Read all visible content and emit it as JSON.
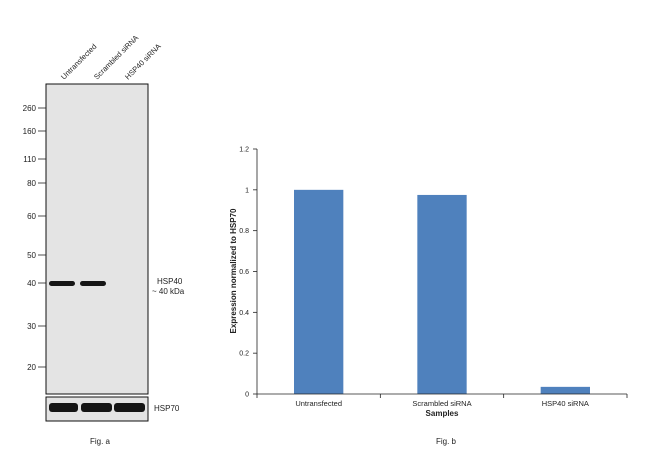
{
  "figure_a": {
    "lanes": [
      "Untransfected",
      "Scrambled siRNA",
      "HSP40 siRNA"
    ],
    "mw_markers": [
      "260",
      "160",
      "110",
      "80",
      "60",
      "50",
      "40",
      "30",
      "20"
    ],
    "band_label_line1": "HSP40",
    "band_label_line2": "~ 40 kDa",
    "loading_control_label": "HSP70",
    "caption": "Fig. a"
  },
  "figure_b": {
    "caption": "Fig. b"
  },
  "chart_data": {
    "type": "bar",
    "categories": [
      "Untransfected",
      "Scrambled siRNA",
      "HSP40 siRNA"
    ],
    "values": [
      1.0,
      0.975,
      0.035
    ],
    "title": "",
    "xlabel": "Samples",
    "ylabel": "Expression normalized to HSP70",
    "ylim": [
      0,
      1.2
    ],
    "yticks": [
      "0",
      "0.2",
      "0.4",
      "0.6",
      "0.8",
      "1",
      "1.2"
    ],
    "bar_color": "#4f81bd",
    "grid": false,
    "legend": "none"
  }
}
